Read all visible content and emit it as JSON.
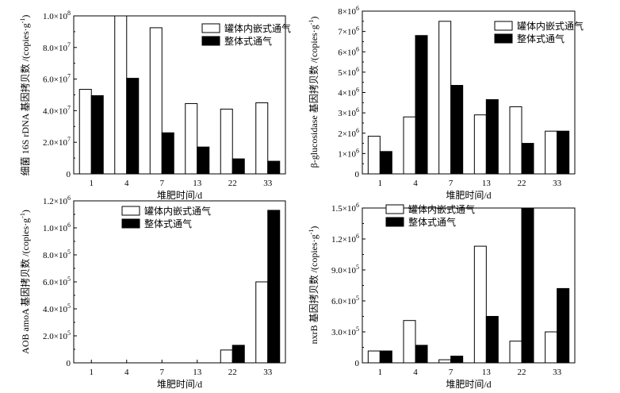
{
  "legend_labels": [
    "罐体内嵌式通气",
    "整体式通气"
  ],
  "colors": {
    "series_1": "#ffffff",
    "series_2": "#000000",
    "stroke": "#000000"
  },
  "chart_data": [
    {
      "type": "bar",
      "categories": [
        "1",
        "4",
        "7",
        "13",
        "22",
        "33"
      ],
      "xlabel": "堆肥时间/d",
      "ylabel_parts": [
        "细菌 16S rDNA 基因拷贝数 /(copies·g",
        "-1",
        ")"
      ],
      "ylim": [
        0,
        100000000
      ],
      "yticks": [
        0,
        20000000,
        40000000,
        60000000,
        80000000,
        100000000
      ],
      "ytick_labels": [
        {
          "base": "0",
          "exp": ""
        },
        {
          "base": "2.0×10",
          "exp": "7"
        },
        {
          "base": "4.0×10",
          "exp": "7"
        },
        {
          "base": "6.0×10",
          "exp": "7"
        },
        {
          "base": "8.0×10",
          "exp": "7"
        },
        {
          "base": "1.0×10",
          "exp": "8"
        }
      ],
      "series": [
        {
          "name": "罐体内嵌式通气",
          "values": [
            53500000,
            100000000,
            92500000,
            44500000,
            41000000,
            45000000
          ]
        },
        {
          "name": "整体式通气",
          "values": [
            49500000,
            60500000,
            26000000,
            17000000,
            9500000,
            8000000
          ]
        }
      ],
      "legend_position": "top-right",
      "grid": false
    },
    {
      "type": "bar",
      "categories": [
        "1",
        "4",
        "7",
        "13",
        "22",
        "33"
      ],
      "xlabel": "堆肥时间/d",
      "ylabel_parts": [
        "β-glucosidase 基因拷贝数 /(copies·g",
        "-1",
        ")"
      ],
      "ylim": [
        0,
        8000000
      ],
      "yticks": [
        0,
        1000000,
        2000000,
        3000000,
        4000000,
        5000000,
        6000000,
        7000000,
        8000000
      ],
      "ytick_labels": [
        {
          "base": "0",
          "exp": ""
        },
        {
          "base": "1×10",
          "exp": "6"
        },
        {
          "base": "2×10",
          "exp": "6"
        },
        {
          "base": "3×10",
          "exp": "6"
        },
        {
          "base": "4×10",
          "exp": "6"
        },
        {
          "base": "5×10",
          "exp": "6"
        },
        {
          "base": "6×10",
          "exp": "6"
        },
        {
          "base": "7×10",
          "exp": "6"
        },
        {
          "base": "8×10",
          "exp": "6"
        }
      ],
      "series": [
        {
          "name": "罐体内嵌式通气",
          "values": [
            1850000,
            2800000,
            7500000,
            2900000,
            3300000,
            2100000
          ]
        },
        {
          "name": "整体式通气",
          "values": [
            1100000,
            6800000,
            4350000,
            3650000,
            1500000,
            2100000
          ]
        }
      ],
      "legend_position": "top-right",
      "grid": false
    },
    {
      "type": "bar",
      "categories": [
        "1",
        "4",
        "7",
        "13",
        "22",
        "33"
      ],
      "xlabel": "堆肥时间/d",
      "ylabel_parts": [
        "AOB amoA 基因拷贝数 /(copies·g",
        "-1",
        ")"
      ],
      "ylim": [
        0,
        1200000
      ],
      "yticks": [
        0,
        200000,
        400000,
        600000,
        800000,
        1000000,
        1200000
      ],
      "ytick_labels": [
        {
          "base": "0",
          "exp": ""
        },
        {
          "base": "2.0×10",
          "exp": "5"
        },
        {
          "base": "4.0×10",
          "exp": "5"
        },
        {
          "base": "6.0×10",
          "exp": "5"
        },
        {
          "base": "8.0×10",
          "exp": "5"
        },
        {
          "base": "1.0×10",
          "exp": "6"
        },
        {
          "base": "1.2×10",
          "exp": "6"
        }
      ],
      "series": [
        {
          "name": "罐体内嵌式通气",
          "values": [
            0,
            0,
            0,
            0,
            95000,
            600000
          ]
        },
        {
          "name": "整体式通气",
          "values": [
            0,
            0,
            0,
            0,
            130000,
            1130000
          ]
        }
      ],
      "legend_position": "top-right",
      "grid": false
    },
    {
      "type": "bar",
      "categories": [
        "1",
        "4",
        "7",
        "13",
        "22",
        "33"
      ],
      "xlabel": "堆肥时间/d",
      "ylabel_parts": [
        "nxrB 基因拷贝数 /(copies·g",
        "-1",
        ")"
      ],
      "ylim": [
        0,
        1500000
      ],
      "yticks": [
        0,
        300000,
        600000,
        900000,
        1200000,
        1500000
      ],
      "ytick_labels": [
        {
          "base": "0",
          "exp": ""
        },
        {
          "base": "3.0×10",
          "exp": "5"
        },
        {
          "base": "6.0×10",
          "exp": "5"
        },
        {
          "base": "9.0×10",
          "exp": "5"
        },
        {
          "base": "1.2×10",
          "exp": "6"
        },
        {
          "base": "1.5×10",
          "exp": "6"
        }
      ],
      "series": [
        {
          "name": "罐体内嵌式通气",
          "values": [
            115000,
            410000,
            30000,
            1130000,
            210000,
            300000
          ]
        },
        {
          "name": "整体式通气",
          "values": [
            115000,
            170000,
            65000,
            450000,
            1500000,
            720000
          ]
        }
      ],
      "legend_position": "top-left",
      "grid": false
    }
  ]
}
